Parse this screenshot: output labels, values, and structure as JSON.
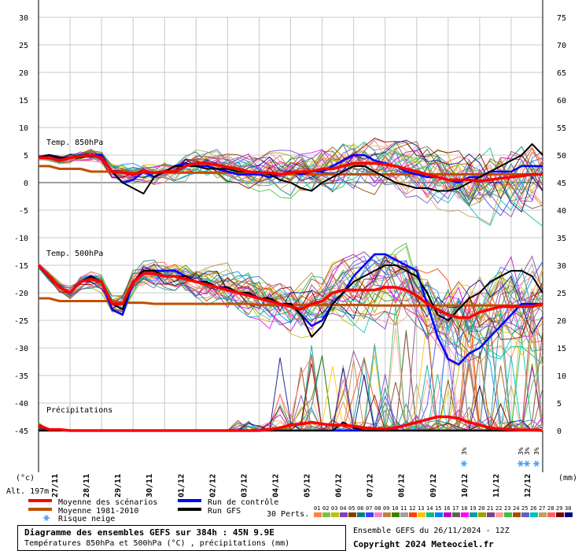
{
  "chart_data": {
    "type": "line",
    "left_axis": {
      "unit": "(°c)",
      "ticks": [
        30,
        25,
        20,
        15,
        10,
        5,
        0,
        -5,
        -10,
        -15,
        -20,
        -25,
        -30,
        -35,
        -40,
        -45
      ],
      "range": [
        -45,
        30
      ]
    },
    "right_axis": {
      "unit": "(mm)",
      "ticks": [
        75,
        70,
        65,
        60,
        55,
        50,
        45,
        40,
        35,
        30,
        25,
        20,
        15,
        10,
        5,
        0
      ],
      "range": [
        0,
        75
      ]
    },
    "altitude_label": "Alt. 197m",
    "x_dates": [
      "27/11",
      "28/11",
      "29/11",
      "30/11",
      "01/12",
      "02/12",
      "03/12",
      "04/12",
      "05/12",
      "06/12",
      "07/12",
      "08/12",
      "09/12",
      "10/12",
      "11/12",
      "12/12"
    ],
    "panel_labels": {
      "t850": "Temp. 850hPa",
      "t500": "Temp. 500hPa",
      "precip": "Précipitations"
    },
    "snow_risk": [
      {
        "day": 13.5,
        "label": "3%"
      },
      {
        "day": 15.3,
        "label": "3%"
      },
      {
        "day": 15.5,
        "label": "3%"
      },
      {
        "day": 15.8,
        "label": "3%"
      }
    ],
    "series": [
      {
        "name": "Moyenne des scénarios",
        "t850": [
          4.5,
          4.5,
          4,
          4.5,
          4.8,
          5,
          4.5,
          2,
          1.8,
          1.5,
          2,
          1.8,
          2,
          2,
          3,
          3.5,
          3.5,
          3.2,
          2.8,
          2.5,
          2,
          1.8,
          1.8,
          1.5,
          1.8,
          2,
          2,
          2.5,
          2.5,
          3,
          3.5,
          3.5,
          3.5,
          3.3,
          3,
          2.5,
          2,
          1.5,
          1,
          0.5,
          0.5,
          0.5,
          0.3,
          0.5,
          0.8,
          1,
          1.2,
          1.5,
          1.5
        ],
        "t500": [
          -15,
          -17,
          -19,
          -20,
          -18,
          -17.5,
          -18,
          -22,
          -22,
          -18,
          -16.5,
          -16.5,
          -17,
          -17,
          -17.5,
          -18,
          -18.5,
          -19,
          -19.5,
          -20,
          -20.5,
          -21,
          -21.5,
          -22,
          -22.5,
          -23,
          -22,
          -21.5,
          -20,
          -19.5,
          -19.5,
          -19.5,
          -19.5,
          -19,
          -19,
          -19.5,
          -20.5,
          -22,
          -23,
          -24,
          -24.5,
          -24.5,
          -23.5,
          -23,
          -22.5,
          -22.5,
          -22.5,
          -22.5,
          -22
        ],
        "precip": [
          1,
          0.2,
          0.2,
          0,
          0,
          0,
          0,
          0,
          0,
          0,
          0,
          0,
          0,
          0,
          0,
          0,
          0,
          0,
          0,
          0,
          0,
          0,
          0.2,
          0.5,
          1,
          1.2,
          1.5,
          1.2,
          1,
          1,
          0.8,
          0.5,
          0.4,
          0.3,
          0.5,
          1,
          1.5,
          2,
          2.5,
          2.5,
          2.2,
          1.5,
          1,
          0.5,
          0.3,
          0.2,
          0.1,
          0.1,
          0
        ]
      },
      {
        "name": "Moyenne 1981-2010",
        "t850": [
          3,
          3,
          2.5,
          2.5,
          2.5,
          2,
          2,
          2,
          2,
          1.8,
          1.8,
          1.8,
          1.8,
          1.8,
          1.8,
          1.8,
          1.8,
          1.8,
          1.8,
          1.8,
          1.8,
          1.5,
          1.5,
          1.5,
          1.5,
          1.5,
          1.5,
          1.5,
          1.5,
          1.5,
          1.5,
          1.5,
          1.5,
          1.5,
          1.5,
          1.5,
          1.5,
          1.5,
          1.5,
          1.5,
          1.5,
          1.5,
          1.5,
          1.5,
          1.5,
          1.5,
          1.5,
          1.5,
          1.5
        ],
        "t500": [
          -21,
          -21,
          -21.5,
          -21.5,
          -21.5,
          -21.5,
          -21.5,
          -21.5,
          -21.8,
          -21.8,
          -21.8,
          -22,
          -22,
          -22,
          -22,
          -22,
          -22,
          -22,
          -22,
          -22,
          -22,
          -22.2,
          -22.2,
          -22.2,
          -22.2,
          -22.2,
          -22.2,
          -22.2,
          -22.2,
          -22.2,
          -22.2,
          -22.2,
          -22.3,
          -22.3,
          -22.3,
          -22.3,
          -22.3,
          -22.3,
          -22.3,
          -22.3,
          -22.3,
          -22.3,
          -22.3,
          -22.3,
          -22.3,
          -22.3,
          -22.3,
          -22.3,
          -22.3
        ]
      },
      {
        "name": "Run de contrôle",
        "t850": [
          4.5,
          5,
          4.5,
          4.5,
          5,
          5,
          5,
          2,
          0,
          0.5,
          2,
          1,
          2,
          3,
          3.5,
          3,
          3,
          2.5,
          2,
          1.5,
          1.5,
          1.5,
          1,
          1.5,
          2,
          1.5,
          2,
          2,
          3,
          4,
          5,
          5,
          4,
          3.5,
          3,
          2,
          1.5,
          1,
          1,
          0.5,
          0,
          1,
          1,
          2,
          2,
          2,
          3,
          3,
          3
        ],
        "t500": [
          -15,
          -17,
          -19,
          -20,
          -18,
          -17,
          -18,
          -23,
          -24,
          -18,
          -16,
          -16,
          -16,
          -16,
          -17,
          -18,
          -18,
          -19,
          -19,
          -20,
          -20,
          -21,
          -21,
          -22,
          -22,
          -24,
          -26,
          -25,
          -22,
          -20,
          -17,
          -15,
          -13,
          -13,
          -14,
          -15,
          -16,
          -22,
          -28,
          -32,
          -33,
          -31,
          -30,
          -28,
          -26,
          -24,
          -22,
          -22,
          -22
        ],
        "precip": [
          0,
          0,
          0,
          0,
          0,
          0,
          0,
          0,
          0,
          0,
          0,
          0,
          0,
          0,
          0,
          0,
          0,
          0,
          0,
          0,
          0,
          0,
          0,
          0,
          0,
          0,
          0,
          0,
          0,
          0,
          0,
          0,
          0,
          0,
          0,
          0,
          0,
          0,
          0,
          0,
          0,
          0,
          0,
          0,
          0,
          0,
          0,
          0,
          0
        ]
      },
      {
        "name": "Run GFS",
        "t850": [
          4.5,
          5,
          4.5,
          4.5,
          4.5,
          5,
          4.5,
          2,
          0,
          -1,
          -2,
          1,
          2,
          3,
          3,
          3,
          2.5,
          2.5,
          2.5,
          2,
          2,
          2,
          1.5,
          0.5,
          0,
          -1,
          -1.5,
          0,
          1,
          2,
          3,
          3,
          2,
          1,
          0,
          -0.5,
          -1,
          -1,
          -1.5,
          -1.5,
          -1,
          0,
          1,
          2,
          3,
          4,
          5,
          7,
          5
        ],
        "t500": [
          -15,
          -17,
          -19,
          -20,
          -18,
          -17,
          -18,
          -22,
          -23,
          -18,
          -16,
          -16,
          -17,
          -17,
          -17,
          -18,
          -18,
          -19,
          -19,
          -20,
          -20,
          -21,
          -21,
          -22,
          -22,
          -24,
          -28,
          -26,
          -22,
          -20,
          -18,
          -17,
          -16,
          -15,
          -15,
          -16,
          -17,
          -20,
          -24,
          -25,
          -23,
          -21,
          -20,
          -18,
          -17,
          -16,
          -16,
          -17,
          -20
        ],
        "precip": [
          0,
          0,
          0,
          0,
          0,
          0,
          0,
          0,
          0,
          0,
          0,
          0,
          0,
          0,
          0,
          0,
          0,
          0,
          0,
          0,
          0,
          0,
          0,
          0,
          0,
          0,
          0,
          0,
          0,
          1.5,
          0.5,
          0,
          0,
          0,
          0,
          0,
          0,
          0,
          0,
          0,
          0,
          0,
          0,
          0,
          0,
          0,
          0,
          0,
          0
        ]
      }
    ],
    "legend": {
      "items": [
        {
          "label": "Moyenne des scénarios",
          "color": "#ff0000"
        },
        {
          "label": "Moyenne 1981-2010",
          "color": "#c05000"
        },
        {
          "label": "Risque neige",
          "icon": "snowflake-icon"
        },
        {
          "label": "Run de contrôle",
          "color": "#0000ff"
        },
        {
          "label": "Run GFS",
          "color": "#000000"
        }
      ],
      "perts_label": "30 Perts.",
      "perts": [
        {
          "num": "01",
          "color": "#ff8040"
        },
        {
          "num": "02",
          "color": "#80c040"
        },
        {
          "num": "03",
          "color": "#c0c000"
        },
        {
          "num": "04",
          "color": "#8040c0"
        },
        {
          "num": "05",
          "color": "#804000"
        },
        {
          "num": "06",
          "color": "#008080"
        },
        {
          "num": "07",
          "color": "#4040ff"
        },
        {
          "num": "08",
          "color": "#ff80c0"
        },
        {
          "num": "09",
          "color": "#c08040"
        },
        {
          "num": "10",
          "color": "#408000"
        },
        {
          "num": "11",
          "color": "#a0a0a0"
        },
        {
          "num": "12",
          "color": "#ff4000"
        },
        {
          "num": "13",
          "color": "#ffc000"
        },
        {
          "num": "14",
          "color": "#00c080"
        },
        {
          "num": "15",
          "color": "#0080ff"
        },
        {
          "num": "16",
          "color": "#c000c0"
        },
        {
          "num": "17",
          "color": "#606060"
        },
        {
          "num": "18",
          "color": "#ff00ff"
        },
        {
          "num": "19",
          "color": "#00a0a0"
        },
        {
          "num": "20",
          "color": "#a0a000"
        },
        {
          "num": "21",
          "color": "#804080"
        },
        {
          "num": "22",
          "color": "#ffa0a0"
        },
        {
          "num": "23",
          "color": "#40c040"
        },
        {
          "num": "24",
          "color": "#a05000"
        },
        {
          "num": "25",
          "color": "#6060c0"
        },
        {
          "num": "26",
          "color": "#00c0c0"
        },
        {
          "num": "27",
          "color": "#c0a060"
        },
        {
          "num": "28",
          "color": "#ff6060"
        },
        {
          "num": "29",
          "color": "#800000"
        },
        {
          "num": "30",
          "color": "#000080"
        }
      ]
    }
  },
  "footer": {
    "title": "Diagramme des ensembles GEFS sur 384h : 45N 9.9E",
    "subtitle": "Températures 850hPa et 500hPa (°C) , précipitations (mm)",
    "run_info": "Ensemble GEFS du 26/11/2024 - 12Z",
    "copyright": "Copyright 2024 Meteociel.fr"
  }
}
